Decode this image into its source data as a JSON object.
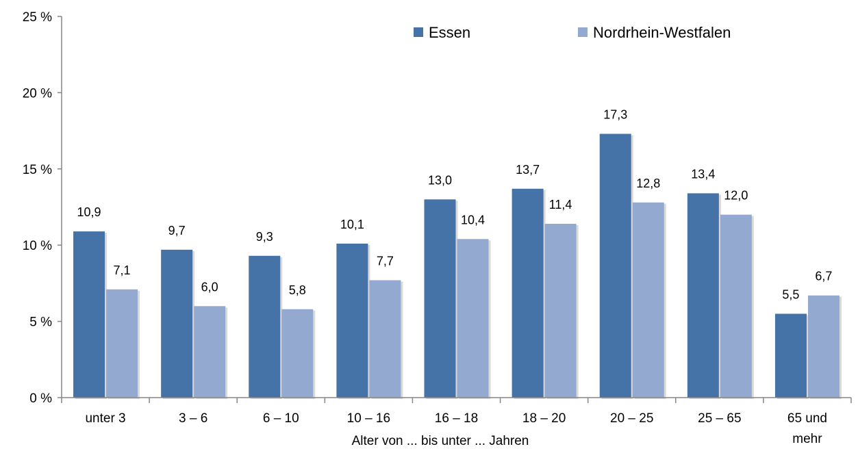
{
  "chart_data": {
    "type": "bar",
    "title": "",
    "xlabel": "Alter von ... bis unter ... Jahren",
    "ylabel": "",
    "ylim": [
      0,
      25
    ],
    "y_ticks": [
      0,
      5,
      10,
      15,
      20,
      25
    ],
    "y_tick_labels": [
      "0 %",
      "5 %",
      "10 %",
      "15 %",
      "20 %",
      "25 %"
    ],
    "categories": [
      "unter 3",
      "3 –  6",
      "6 – 10",
      "10 – 16",
      "16 – 18",
      "18 – 20",
      "20 – 25",
      "25 – 65",
      "65 und mehr"
    ],
    "category_lines": [
      [
        "unter 3"
      ],
      [
        "3 –  6"
      ],
      [
        "6 – 10"
      ],
      [
        "10 – 16"
      ],
      [
        "16 – 18"
      ],
      [
        "18 – 20"
      ],
      [
        "20 – 25"
      ],
      [
        "25 – 65"
      ],
      [
        "65 und",
        "mehr"
      ]
    ],
    "series": [
      {
        "name": "Essen",
        "color": "#4572A7",
        "values": [
          10.9,
          9.7,
          9.3,
          10.1,
          13.0,
          13.7,
          17.3,
          13.4,
          5.5
        ],
        "labels": [
          "10,9",
          "9,7",
          "9,3",
          "10,1",
          "13,0",
          "13,7",
          "17,3",
          "13,4",
          "5,5"
        ]
      },
      {
        "name": "Nordrhein-Westfalen",
        "color": "#93A9CF",
        "values": [
          7.1,
          6.0,
          5.8,
          7.7,
          10.4,
          11.4,
          12.8,
          12.0,
          6.7
        ],
        "labels": [
          "7,1",
          "6,0",
          "5,8",
          "7,7",
          "10,4",
          "11,4",
          "12,8",
          "12,0",
          "6,7"
        ]
      }
    ],
    "grid": false,
    "legend_position": "top-right"
  }
}
